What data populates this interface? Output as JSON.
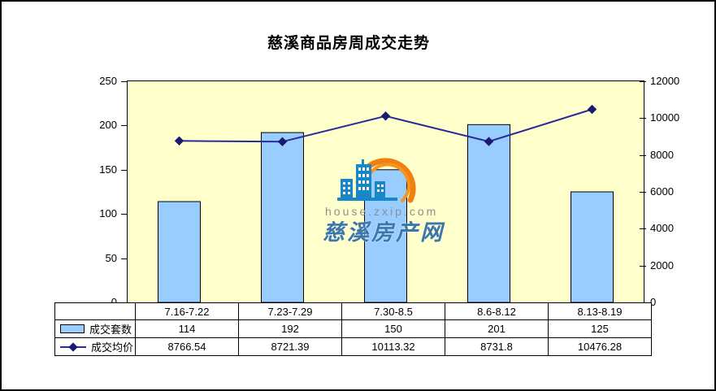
{
  "title": "慈溪商品房周成交走势",
  "watermark": {
    "url": "house.zxip.com",
    "site_name": "慈溪房产网"
  },
  "colors": {
    "plot_bg": "#FFFFCC",
    "bar_fill": "#99CCFF",
    "bar_border": "#000000",
    "line": "#2A2A99",
    "marker": "#1A1A70",
    "logo_blue": "#1787C8",
    "logo_orange": "#F28011"
  },
  "chart_data": {
    "type": "bar",
    "subtype": "combo-bar-line",
    "categories": [
      "7.16-7.22",
      "7.23-7.29",
      "7.30-8.5",
      "8.6-8.12",
      "8.13-8.19"
    ],
    "series": [
      {
        "name": "成交套数",
        "type": "bar",
        "axis": "left",
        "values": [
          114,
          192,
          150,
          201,
          125
        ]
      },
      {
        "name": "成交均价",
        "type": "line",
        "axis": "right",
        "values": [
          8766.54,
          8721.39,
          10113.32,
          8731.8,
          10476.28
        ]
      }
    ],
    "title": "慈溪商品房周成交走势",
    "xlabel": "",
    "ylabel": "",
    "left_axis": {
      "min": 0,
      "max": 250,
      "ticks": [
        0,
        50,
        100,
        150,
        200,
        250
      ]
    },
    "right_axis": {
      "min": 0,
      "max": 12000,
      "ticks": [
        0,
        2000,
        4000,
        6000,
        8000,
        10000,
        12000
      ]
    },
    "grid": false,
    "legend_position": "bottom-table"
  }
}
